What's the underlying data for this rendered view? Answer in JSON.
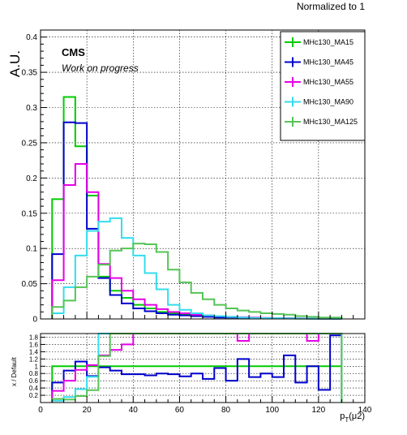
{
  "page_title": "Normalized to 1",
  "top": {
    "ylabel": "A.U.",
    "experiment": "CMS",
    "status": "Work on progress",
    "ylim": [
      0,
      0.41
    ],
    "yticks": [
      "0",
      "0.05",
      "0.1",
      "0.15",
      "0.2",
      "0.25",
      "0.3",
      "0.35",
      "0.4"
    ],
    "ytick_values": [
      0,
      0.05,
      0.1,
      0.15,
      0.2,
      0.25,
      0.3,
      0.35,
      0.4
    ],
    "grid": true
  },
  "bottom": {
    "ylabel": "x / Default",
    "xlabel": "p_T(μ2)",
    "yticks": [
      "0.2",
      "0.4",
      "0.6",
      "0.8",
      "1",
      "1.2",
      "1.4",
      "1.6",
      "1.8"
    ],
    "xticks": [
      "0",
      "20",
      "40",
      "60",
      "80",
      "100",
      "120",
      "140"
    ]
  },
  "legend": {
    "position": "top-right",
    "entries": [
      {
        "label": "MHc130_MA15",
        "color": "#00cc00"
      },
      {
        "label": "MHc130_MA45",
        "color": "#0000cc"
      },
      {
        "label": "MHc130_MA55",
        "color": "#e600e6"
      },
      {
        "label": "MHc130_MA90",
        "color": "#33ddee"
      },
      {
        "label": "MHc130_MA125",
        "color": "#55c455"
      }
    ]
  },
  "chart_data": {
    "type": "histogram",
    "xlim": [
      0,
      140
    ],
    "bin_edges": [
      5,
      10,
      15,
      20,
      25,
      30,
      35,
      40,
      45,
      50,
      55,
      60,
      65,
      70,
      75,
      80,
      85,
      90,
      95,
      100,
      105,
      110,
      115,
      120,
      125,
      130
    ],
    "series": [
      {
        "name": "MHc130_MA15",
        "color": "#00cc00",
        "values": [
          0.17,
          0.315,
          0.245,
          0.175,
          0.06,
          0.04,
          0.03,
          0.02,
          0.015,
          0.01,
          0.008,
          0.006,
          0.005,
          0.004,
          0.003,
          0.002,
          0.002,
          0.0015,
          0.001,
          0.001,
          0.001,
          0.0005,
          0.0005,
          0.0003,
          0.0003
        ]
      },
      {
        "name": "MHc130_MA45",
        "color": "#0000cc",
        "values": [
          0.092,
          0.279,
          0.278,
          0.128,
          0.058,
          0.034,
          0.022,
          0.015,
          0.011,
          0.008,
          0.006,
          0.005,
          0.004,
          0.003,
          0.002,
          0.002,
          0.0018,
          0.0015,
          0.0012,
          0.001,
          0.0008,
          0.0006,
          0.0005,
          0.0004,
          0.0003
        ]
      },
      {
        "name": "MHc130_MA55",
        "color": "#e600e6",
        "values": [
          0.055,
          0.19,
          0.22,
          0.18,
          0.078,
          0.058,
          0.04,
          0.028,
          0.02,
          0.014,
          0.01,
          0.008,
          0.006,
          0.005,
          0.004,
          0.003,
          0.0025,
          0.002,
          0.0015,
          0.0012,
          0.001,
          0.0008,
          0.0006,
          0.0005,
          0.0004
        ]
      },
      {
        "name": "MHc130_MA90",
        "color": "#33ddee",
        "values": [
          0.008,
          0.045,
          0.09,
          0.125,
          0.138,
          0.143,
          0.115,
          0.09,
          0.065,
          0.042,
          0.02,
          0.013,
          0.008,
          0.005,
          0.004,
          0.003,
          0.002,
          0.0015,
          0.0012,
          0.001,
          0.0008,
          0.0006,
          0.0005,
          0.0004,
          0.0003
        ]
      },
      {
        "name": "MHc130_MA125",
        "color": "#55c455",
        "values": [
          0.017,
          0.026,
          0.045,
          0.06,
          0.077,
          0.097,
          0.1,
          0.107,
          0.106,
          0.095,
          0.07,
          0.052,
          0.037,
          0.028,
          0.02,
          0.015,
          0.012,
          0.01,
          0.008,
          0.007,
          0.006,
          0.004,
          0.003,
          0.002,
          0.002
        ]
      }
    ],
    "ratio": {
      "ylim": [
        0,
        1.9
      ],
      "series": [
        {
          "name": "MHc130_MA15",
          "color": "#00cc00",
          "values": [
            1,
            1,
            1,
            1,
            1,
            1,
            1,
            1,
            1,
            1,
            1,
            1,
            1,
            1,
            1,
            1,
            1,
            1,
            1,
            1,
            1,
            1,
            1,
            1,
            1
          ]
        },
        {
          "name": "MHc130_MA45",
          "color": "#0000cc",
          "values": [
            0.55,
            0.88,
            1.13,
            0.73,
            0.97,
            0.88,
            0.78,
            0.78,
            0.75,
            0.8,
            0.78,
            0.72,
            0.8,
            0.65,
            0.95,
            0.6,
            1.2,
            0.7,
            0.8,
            0.7,
            1.3,
            0.55,
            1.0,
            0.35,
            1.85
          ]
        },
        {
          "name": "MHc130_MA55",
          "color": "#e600e6",
          "values": [
            0.32,
            0.6,
            0.9,
            1.03,
            1.3,
            1.45,
            1.6,
            1.9,
            1.9,
            1.9,
            1.9,
            1.9,
            1.9,
            1.9,
            1.9,
            1.9,
            1.7,
            1.9,
            1.9,
            1.9,
            1.9,
            1.9,
            1.7,
            1.9,
            1.9
          ]
        },
        {
          "name": "MHc130_MA90",
          "color": "#33ddee",
          "values": [
            0.05,
            0.15,
            0.37,
            0.71,
            1.9,
            1.9,
            1.9,
            1.9,
            1.9,
            1.9,
            1.9,
            1.9,
            1.9,
            1.9,
            1.9,
            1.9,
            1.9,
            1.9,
            1.9,
            1.9,
            1.9,
            1.9,
            1.9,
            1.9,
            1.9
          ]
        },
        {
          "name": "MHc130_MA125",
          "color": "#55c455",
          "values": [
            0.1,
            0.08,
            0.18,
            0.34,
            1.28,
            1.9,
            1.9,
            1.9,
            1.9,
            1.9,
            1.9,
            1.9,
            1.9,
            1.9,
            1.9,
            1.9,
            1.9,
            1.9,
            1.9,
            1.9,
            1.9,
            1.9,
            1.9,
            1.9,
            1.9
          ]
        }
      ]
    }
  }
}
